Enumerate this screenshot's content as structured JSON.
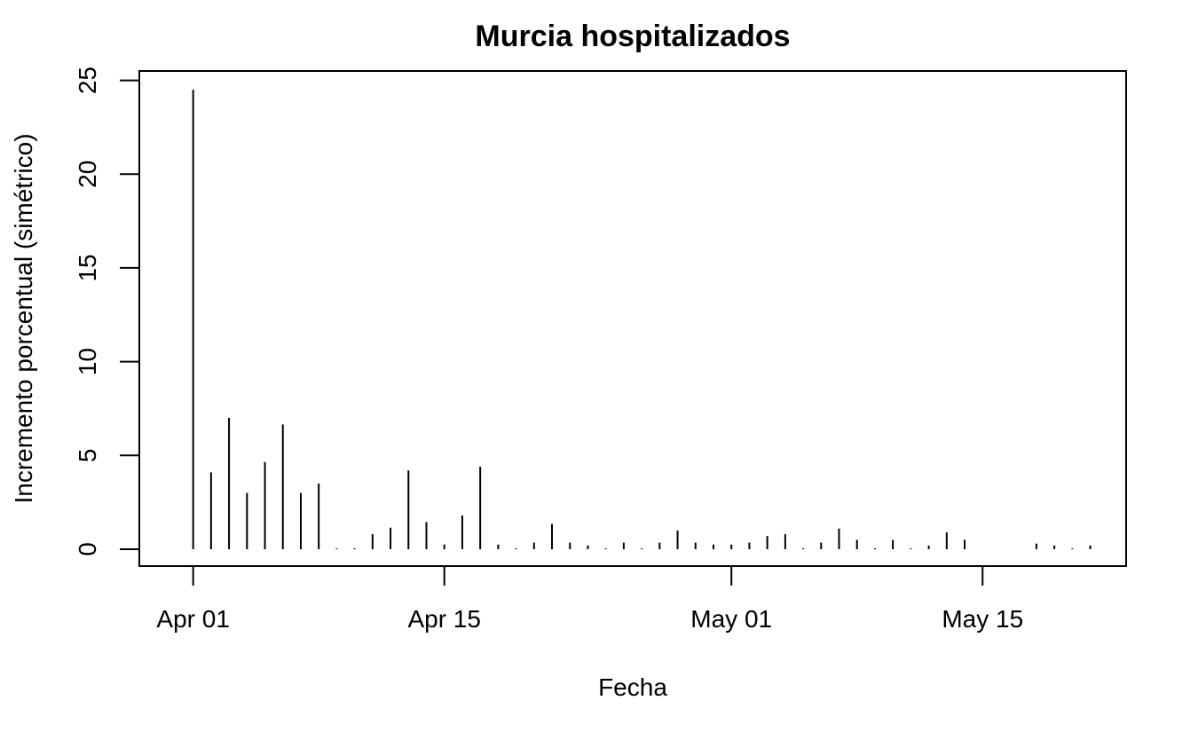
{
  "chart_data": {
    "type": "bar",
    "style": "histogram-spikes",
    "title": "Murcia hospitalizados",
    "xlabel": "Fecha",
    "ylabel": "Incremento porcentual (simétrico)",
    "x_tick_labels": [
      "Apr 01",
      "Apr 15",
      "May 01",
      "May 15"
    ],
    "x_tick_dates": [
      "2020-04-01",
      "2020-04-15",
      "2020-05-01",
      "2020-05-15"
    ],
    "y_ticks": [
      0,
      5,
      10,
      15,
      20,
      25
    ],
    "xlim": [
      "2020-03-29",
      "2020-05-23"
    ],
    "ylim": [
      -0.9,
      25.5
    ],
    "grid": false,
    "x": [
      "2020-04-01",
      "2020-04-02",
      "2020-04-03",
      "2020-04-04",
      "2020-04-05",
      "2020-04-06",
      "2020-04-07",
      "2020-04-08",
      "2020-04-09",
      "2020-04-10",
      "2020-04-11",
      "2020-04-12",
      "2020-04-13",
      "2020-04-14",
      "2020-04-15",
      "2020-04-16",
      "2020-04-17",
      "2020-04-18",
      "2020-04-19",
      "2020-04-20",
      "2020-04-21",
      "2020-04-22",
      "2020-04-23",
      "2020-04-24",
      "2020-04-25",
      "2020-04-26",
      "2020-04-27",
      "2020-04-28",
      "2020-04-29",
      "2020-04-30",
      "2020-05-01",
      "2020-05-02",
      "2020-05-03",
      "2020-05-04",
      "2020-05-05",
      "2020-05-06",
      "2020-05-07",
      "2020-05-08",
      "2020-05-09",
      "2020-05-10",
      "2020-05-11",
      "2020-05-12",
      "2020-05-13",
      "2020-05-14",
      "2020-05-15",
      "2020-05-16",
      "2020-05-17",
      "2020-05-18",
      "2020-05-19",
      "2020-05-20",
      "2020-05-21"
    ],
    "values": [
      24.5,
      4.1,
      7.0,
      3.0,
      4.65,
      6.65,
      3.0,
      3.5,
      0.05,
      0.05,
      0.8,
      1.15,
      4.2,
      1.45,
      0.25,
      1.8,
      4.4,
      0.25,
      0.05,
      0.35,
      1.35,
      0.35,
      0.2,
      0.05,
      0.35,
      0.05,
      0.35,
      1.0,
      0.35,
      0.25,
      0.25,
      0.35,
      0.7,
      0.8,
      0.05,
      0.35,
      1.1,
      0.5,
      0.05,
      0.5,
      0.05,
      0.2,
      0.9,
      0.5,
      0,
      0,
      0,
      0.3,
      0.2,
      0.05,
      0.2
    ]
  }
}
